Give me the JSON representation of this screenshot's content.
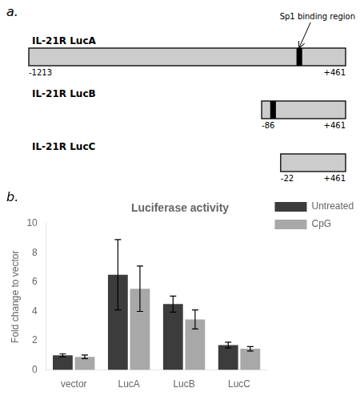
{
  "chart_data": {
    "type": "bar",
    "title": "Luciferase activity",
    "y_label": "Fold change to vector",
    "categories": [
      "vector",
      "LucA",
      "LucB",
      "LucC"
    ],
    "series": [
      {
        "name": "Untreated",
        "color": "#3c3c3c",
        "values": [
          1.0,
          6.5,
          4.5,
          1.7
        ],
        "errors": [
          0.1,
          2.4,
          0.55,
          0.2
        ]
      },
      {
        "name": "CpG",
        "color": "#a8a8a8",
        "values": [
          0.9,
          5.55,
          3.45,
          1.45
        ],
        "errors": [
          0.12,
          1.55,
          0.65,
          0.15
        ]
      }
    ],
    "ylim": [
      0,
      10
    ],
    "yticks": [
      0,
      2,
      4,
      6,
      8,
      10
    ],
    "grid": false,
    "legend": "right",
    "annotations": [
      "a.",
      "b.",
      "Sp1 binding region",
      "IL-21R LucA",
      "-1213",
      "+461",
      "IL-21R LucB",
      "-86",
      "+461",
      "IL-21R LucC",
      "-22",
      "+461"
    ]
  }
}
